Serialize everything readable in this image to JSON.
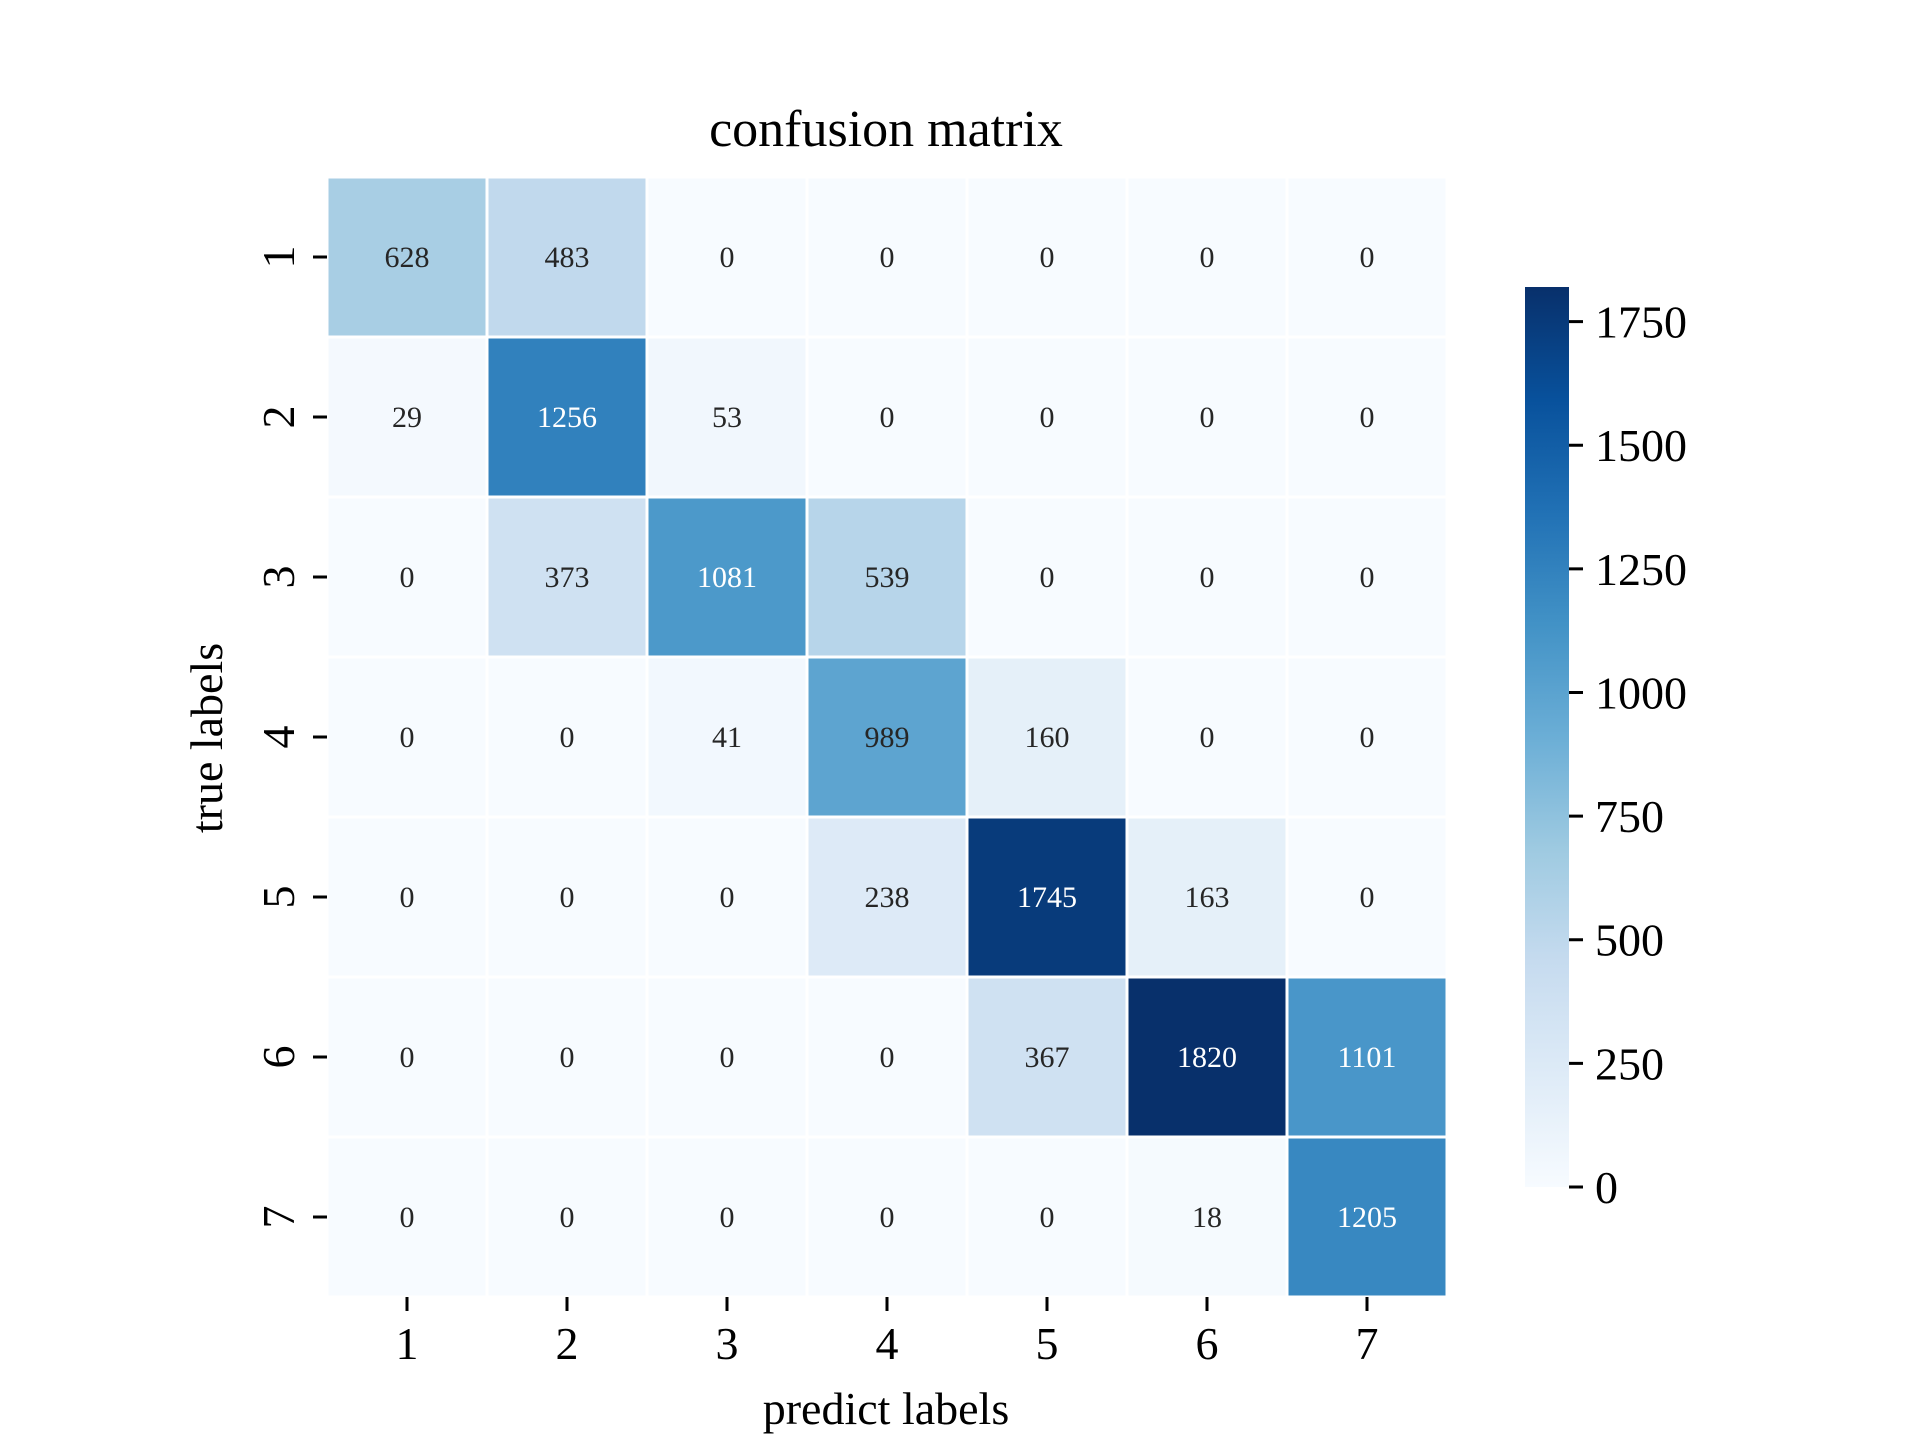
{
  "chart_data": {
    "type": "heatmap",
    "title": "confusion matrix",
    "xlabel": "predict labels",
    "ylabel": "true labels",
    "x_categories": [
      "1",
      "2",
      "3",
      "4",
      "5",
      "6",
      "7"
    ],
    "y_categories": [
      "1",
      "2",
      "3",
      "4",
      "5",
      "6",
      "7"
    ],
    "values": [
      [
        628,
        483,
        0,
        0,
        0,
        0,
        0
      ],
      [
        29,
        1256,
        53,
        0,
        0,
        0,
        0
      ],
      [
        0,
        373,
        1081,
        539,
        0,
        0,
        0
      ],
      [
        0,
        0,
        41,
        989,
        160,
        0,
        0
      ],
      [
        0,
        0,
        0,
        238,
        1745,
        163,
        0
      ],
      [
        0,
        0,
        0,
        0,
        367,
        1820,
        1101
      ],
      [
        0,
        0,
        0,
        0,
        0,
        18,
        1205
      ]
    ],
    "colormap": "Blues",
    "color_range": [
      0,
      1820
    ],
    "colorbar_ticks": [
      0,
      250,
      500,
      750,
      1000,
      1250,
      1500,
      1750
    ],
    "grid": true,
    "colors": {
      "low": "#f7fbff",
      "high": "#08306b",
      "text_dark": "#262626",
      "text_light": "#ffffff"
    }
  }
}
